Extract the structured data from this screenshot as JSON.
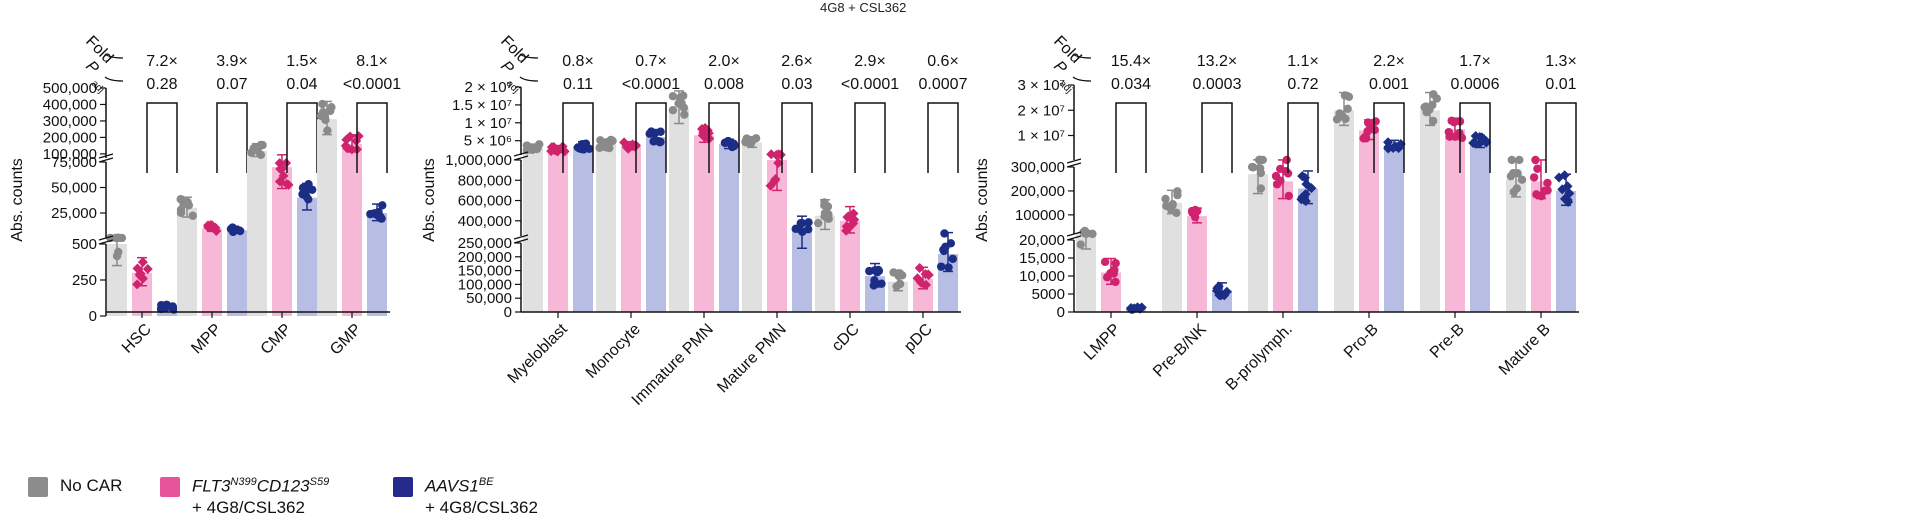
{
  "header": {
    "text": "4G8 + CSL362"
  },
  "legend": {
    "items": [
      {
        "label": "No CAR",
        "color": "#8c8c8c",
        "sub": ""
      },
      {
        "label": "FLT3N399CD123S59",
        "base1": "FLT3",
        "sup1": "N399",
        "base2": "CD123",
        "sup2": "S59",
        "color": "#e8549a",
        "sub": "+ 4G8/CSL362"
      },
      {
        "label": "AAVS1BE",
        "base1": "AAVS1",
        "sup1": "BE",
        "color": "#252a8c",
        "sub": "+ 4G8/CSL362"
      }
    ]
  },
  "colors": {
    "nocar_bar": "#e0e0e0",
    "nocar_dot": "#8a8a8a",
    "flt3_bar": "#f7b8d8",
    "flt3_dot": "#d0236e",
    "aavs1_bar": "#b8bde4",
    "aavs1_dot": "#1c2d86"
  },
  "chart_data": [
    {
      "type": "bar",
      "title": "",
      "ylabel": "Abs. counts",
      "xlabel": "",
      "fold_label": "Fold",
      "p_label": "P",
      "p_sub": "adj",
      "series": [
        "No CAR",
        "FLT3N399CD123S59 + 4G8/CSL362",
        "AAVS1BE + 4G8/CSL362"
      ],
      "categories": [
        "HSC",
        "MPP",
        "CMP",
        "GMP"
      ],
      "fold": [
        "7.2×",
        "3.9×",
        "1.5×",
        "8.1×"
      ],
      "padj": [
        "0.28",
        "0.07",
        "0.04",
        "<0.0001"
      ],
      "axis_segments": [
        {
          "ticks": [
            "0",
            "250",
            "500"
          ],
          "range": [
            0,
            500
          ]
        },
        {
          "ticks": [
            "25,000",
            "50,000",
            "75,000"
          ],
          "range": [
            500,
            75000
          ]
        },
        {
          "ticks": [
            "100,000",
            "200,000",
            "300,000",
            "400,000",
            "500,000"
          ],
          "range": [
            75000,
            500000
          ]
        }
      ],
      "values": [
        [
          500,
          300,
          60
        ],
        [
          30000,
          10000,
          8000
        ],
        [
          120000,
          70000,
          40000
        ],
        [
          310000,
          160000,
          25000
        ]
      ]
    },
    {
      "type": "bar",
      "title": "",
      "ylabel": "Abs. counts",
      "xlabel": "",
      "fold_label": "Fold",
      "p_label": "P",
      "p_sub": "adj",
      "series": [
        "No CAR",
        "FLT3N399CD123S59 + 4G8/CSL362",
        "AAVS1BE + 4G8/CSL362"
      ],
      "categories": [
        "Myeloblast",
        "Monocyte",
        "Immature PMN",
        "Mature PMN",
        "cDC",
        "pDC"
      ],
      "fold": [
        "0.8×",
        "0.7×",
        "2.0×",
        "2.6×",
        "2.9×",
        "0.6×"
      ],
      "padj": [
        "0.11",
        "<0.0001",
        "0.008",
        "0.03",
        "<0.0001",
        "0.0007"
      ],
      "axis_segments": [
        {
          "ticks": [
            "0",
            "50,000",
            "100,000",
            "150,000",
            "200,000",
            "250,000"
          ],
          "range": [
            0,
            250000
          ]
        },
        {
          "ticks": [
            "400,000",
            "600,000",
            "800,000",
            "1,000,000"
          ],
          "range": [
            250000,
            1000000
          ]
        },
        {
          "ticks": [
            "5 × 10⁶",
            "1 × 10⁷",
            "1.5 × 10⁷",
            "2 × 10⁷"
          ],
          "range": [
            1000000,
            20000000
          ]
        }
      ],
      "values": [
        [
          3000000,
          2700000,
          3500000
        ],
        [
          4000000,
          3500000,
          6000000
        ],
        [
          14000000,
          6500000,
          4000000
        ],
        [
          4500000,
          1000000,
          330000
        ],
        [
          450000,
          400000,
          130000
        ],
        [
          110000,
          120000,
          210000
        ]
      ]
    },
    {
      "type": "bar",
      "title": "",
      "ylabel": "Abs. counts",
      "xlabel": "",
      "fold_label": "Fold",
      "p_label": "P",
      "p_sub": "adj",
      "series": [
        "No CAR",
        "FLT3N399CD123S59 + 4G8/CSL362",
        "AAVS1BE + 4G8/CSL362"
      ],
      "categories": [
        "LMPP",
        "Pre-B/NK",
        "B-prolymph.",
        "Pro-B",
        "Pre-B",
        "Mature B"
      ],
      "fold": [
        "15.4×",
        "13.2×",
        "1.1×",
        "2.2×",
        "1.7×",
        "1.3×"
      ],
      "padj": [
        "0.034",
        "0.0003",
        "0.72",
        "0.001",
        "0.0006",
        "0.01"
      ],
      "axis_segments": [
        {
          "ticks": [
            "0",
            "5000",
            "10,000",
            "15,000",
            "20,000"
          ],
          "range": [
            0,
            20000
          ]
        },
        {
          "ticks": [
            "100000",
            "200,000",
            "300,000"
          ],
          "range": [
            20000,
            300000
          ]
        },
        {
          "ticks": [
            "1 × 10⁷",
            "2 × 10⁷",
            "3 × 10⁷"
          ],
          "range": [
            300000,
            30000000
          ]
        }
      ],
      "values": [
        [
          25000,
          11000,
          1000
        ],
        [
          150000,
          95000,
          6000
        ],
        [
          270000,
          240000,
          210000
        ],
        [
          20000000,
          12000000,
          6000000
        ],
        [
          20000000,
          12500000,
          7500000
        ],
        [
          250000,
          240000,
          200000
        ]
      ]
    }
  ]
}
